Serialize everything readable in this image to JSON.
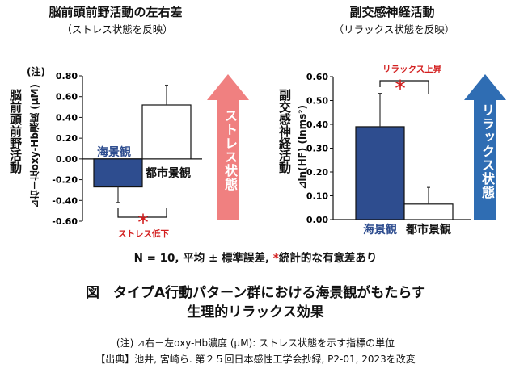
{
  "colors": {
    "seascape": "#2e4d8f",
    "city": "#ffffff",
    "stress_arrow": "#f08080",
    "relax_arrow": "#2f6db3",
    "star": "#d32020"
  },
  "left": {
    "title": "脳前頭前野活動の左右差",
    "subtitle": "（ストレス状態を反映）",
    "side_label": "脳前頭前野活動",
    "axis_label": "⊿右－左oxy-Hb濃度 (µM)",
    "note_marker": "(注)",
    "sig_star": "＊",
    "sig_label": "ストレス低下",
    "arrow_label": "ストレス状態"
  },
  "right": {
    "title": "副交感神経活動",
    "subtitle": "（リラックス状態を反映）",
    "side_label": "副交感神経活動",
    "axis_label": "⊿ln(HF) (lnms²)",
    "sig_star": "＊",
    "sig_label": "リラックス上昇",
    "arrow_label": "リラックス状態"
  },
  "chart_data": [
    {
      "type": "bar",
      "title": "脳前頭前野活動の左右差",
      "ylabel": "⊿右－左oxy-Hb濃度 (µM)",
      "ylim": [
        -0.6,
        0.8
      ],
      "yticks": [
        "0.80",
        "0.60",
        "0.40",
        "0.20",
        "0.00",
        "-0.20",
        "-0.40",
        "-0.60"
      ],
      "categories": [
        "海景観",
        "都市景観"
      ],
      "values": [
        -0.27,
        0.52
      ],
      "errors": [
        0.15,
        0.19
      ]
    },
    {
      "type": "bar",
      "title": "副交感神経活動",
      "ylabel": "⊿ln(HF) (lnms²)",
      "ylim": [
        0,
        0.6
      ],
      "yticks": [
        "0.60",
        "0.50",
        "0.40",
        "0.30",
        "0.20",
        "0.10",
        "0.00"
      ],
      "categories": [
        "海景観",
        "都市景観"
      ],
      "values": [
        0.39,
        0.065
      ],
      "errors": [
        0.14,
        0.07
      ]
    }
  ],
  "footnote_stats": "N = 10, 平均 ± 標準誤差, ",
  "footnote_stats_star": "*",
  "footnote_stats_tail": "統計的な有意差あり",
  "caption_line1": "図　タイプA行動パターン群における海景観がもたらす",
  "caption_line2": "生理的リラックス効果",
  "note_line": "(注) ⊿右－左oxy-Hb濃度 (µM): ストレス状態を示す指標の単位",
  "source_line": "【出典】池井, 宮崎ら. 第２５回日本感性工学会抄録, P2-01, 2023を改変"
}
